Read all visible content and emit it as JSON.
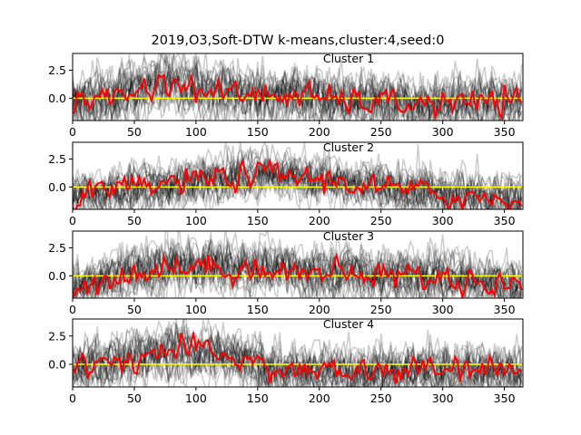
{
  "figure": {
    "title": "2019,O3,Soft-DTW k-means,cluster:4,seed:0",
    "colors": {
      "background": "#ffffff",
      "member_series": "#000000",
      "centroid": "#ff0000",
      "zero_line": "#ffff00",
      "axes": "#000000"
    }
  },
  "chart_data": [
    {
      "type": "line",
      "title": "Cluster 1",
      "xlim": [
        0,
        365
      ],
      "ylim": [
        -2,
        4
      ],
      "xticks": [
        "0",
        "50",
        "100",
        "150",
        "200",
        "250",
        "300",
        "350"
      ],
      "yticks": [
        "0.0",
        "2.5"
      ],
      "zero_line": 0,
      "centroid_profile": {
        "x": [
          0,
          40,
          75,
          120,
          180,
          240,
          300,
          365
        ],
        "y": [
          -0.3,
          0.3,
          1.4,
          0.4,
          0.2,
          -0.4,
          -0.5,
          -0.3
        ]
      },
      "member_band_sd": 1.1
    },
    {
      "type": "line",
      "title": "Cluster 2",
      "xlim": [
        0,
        365
      ],
      "ylim": [
        -2,
        4
      ],
      "xticks": [
        "0",
        "50",
        "100",
        "150",
        "200",
        "250",
        "300",
        "350"
      ],
      "yticks": [
        "0.0",
        "2.5"
      ],
      "zero_line": 0,
      "centroid_profile": {
        "x": [
          0,
          40,
          100,
          160,
          200,
          260,
          320,
          365
        ],
        "y": [
          -1.0,
          -0.3,
          0.6,
          1.2,
          0.7,
          -0.2,
          -0.9,
          -1.2
        ]
      },
      "member_band_sd": 0.9
    },
    {
      "type": "line",
      "title": "Cluster 3",
      "xlim": [
        0,
        365
      ],
      "ylim": [
        -2,
        4
      ],
      "xticks": [
        "0",
        "50",
        "100",
        "150",
        "200",
        "250",
        "300",
        "350"
      ],
      "yticks": [
        "0.0",
        "2.5"
      ],
      "zero_line": 0,
      "centroid_profile": {
        "x": [
          0,
          30,
          80,
          140,
          200,
          260,
          320,
          365
        ],
        "y": [
          -1.2,
          -0.2,
          0.8,
          0.7,
          0.2,
          0.1,
          -0.4,
          -1.0
        ]
      },
      "member_band_sd": 1.0
    },
    {
      "type": "line",
      "title": "Cluster 4",
      "xlim": [
        0,
        365
      ],
      "ylim": [
        -2,
        4
      ],
      "xticks": [
        "0",
        "50",
        "100",
        "150",
        "200",
        "250",
        "300",
        "350"
      ],
      "yticks": [
        "0.0",
        "2.5"
      ],
      "zero_line": 0,
      "centroid_profile": {
        "x": [
          0,
          40,
          80,
          120,
          170,
          230,
          300,
          365
        ],
        "y": [
          -0.4,
          0.4,
          1.2,
          1.0,
          -0.6,
          -0.7,
          -0.5,
          -0.6
        ]
      },
      "member_band_sd": 1.0
    }
  ]
}
